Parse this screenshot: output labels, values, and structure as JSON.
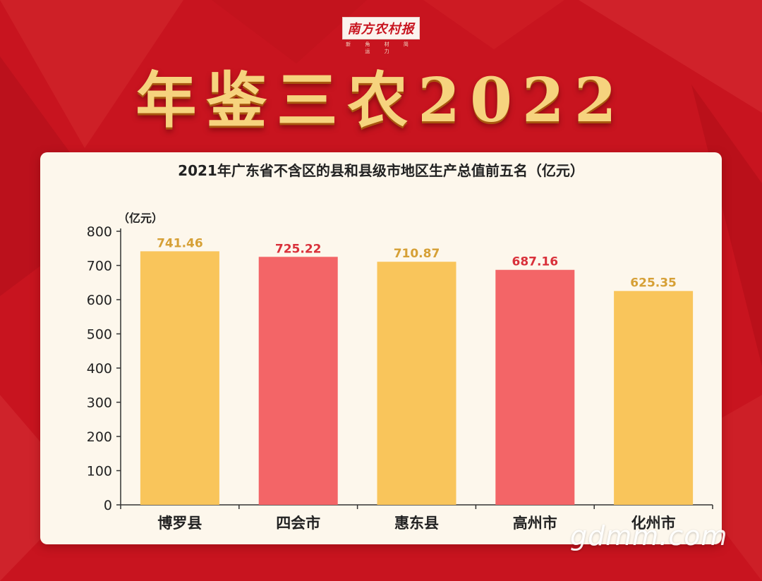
{
  "header": {
    "logo_text": "南方农村报",
    "logo_sub": "新 角 材 简 运 力",
    "main_title": "年鉴三农2022"
  },
  "colors": {
    "background": "#c8141f",
    "bar_yellow": "#f9c55b",
    "bar_red": "#f36567",
    "label_yellow": "#d6a036",
    "label_red": "#d9303a"
  },
  "watermark": "gdmm.com",
  "chart_data": {
    "type": "bar",
    "title": "2021年广东省不含区的县和县级市地区生产总值前五名（亿元）",
    "unit": "（亿元）",
    "categories": [
      "博罗县",
      "四会市",
      "惠东县",
      "高州市",
      "化州市"
    ],
    "values": [
      741.46,
      725.22,
      710.87,
      687.16,
      625.35
    ],
    "value_labels": [
      "741.46",
      "725.22",
      "710.87",
      "687.16",
      "625.35"
    ],
    "bar_colors": [
      "yellow",
      "red",
      "yellow",
      "red",
      "yellow"
    ],
    "ylim": [
      0,
      800
    ],
    "yticks": [
      "0",
      "100",
      "200",
      "300",
      "400",
      "500",
      "600",
      "700",
      "800"
    ],
    "xlabel": "",
    "ylabel": "",
    "grid": false
  }
}
